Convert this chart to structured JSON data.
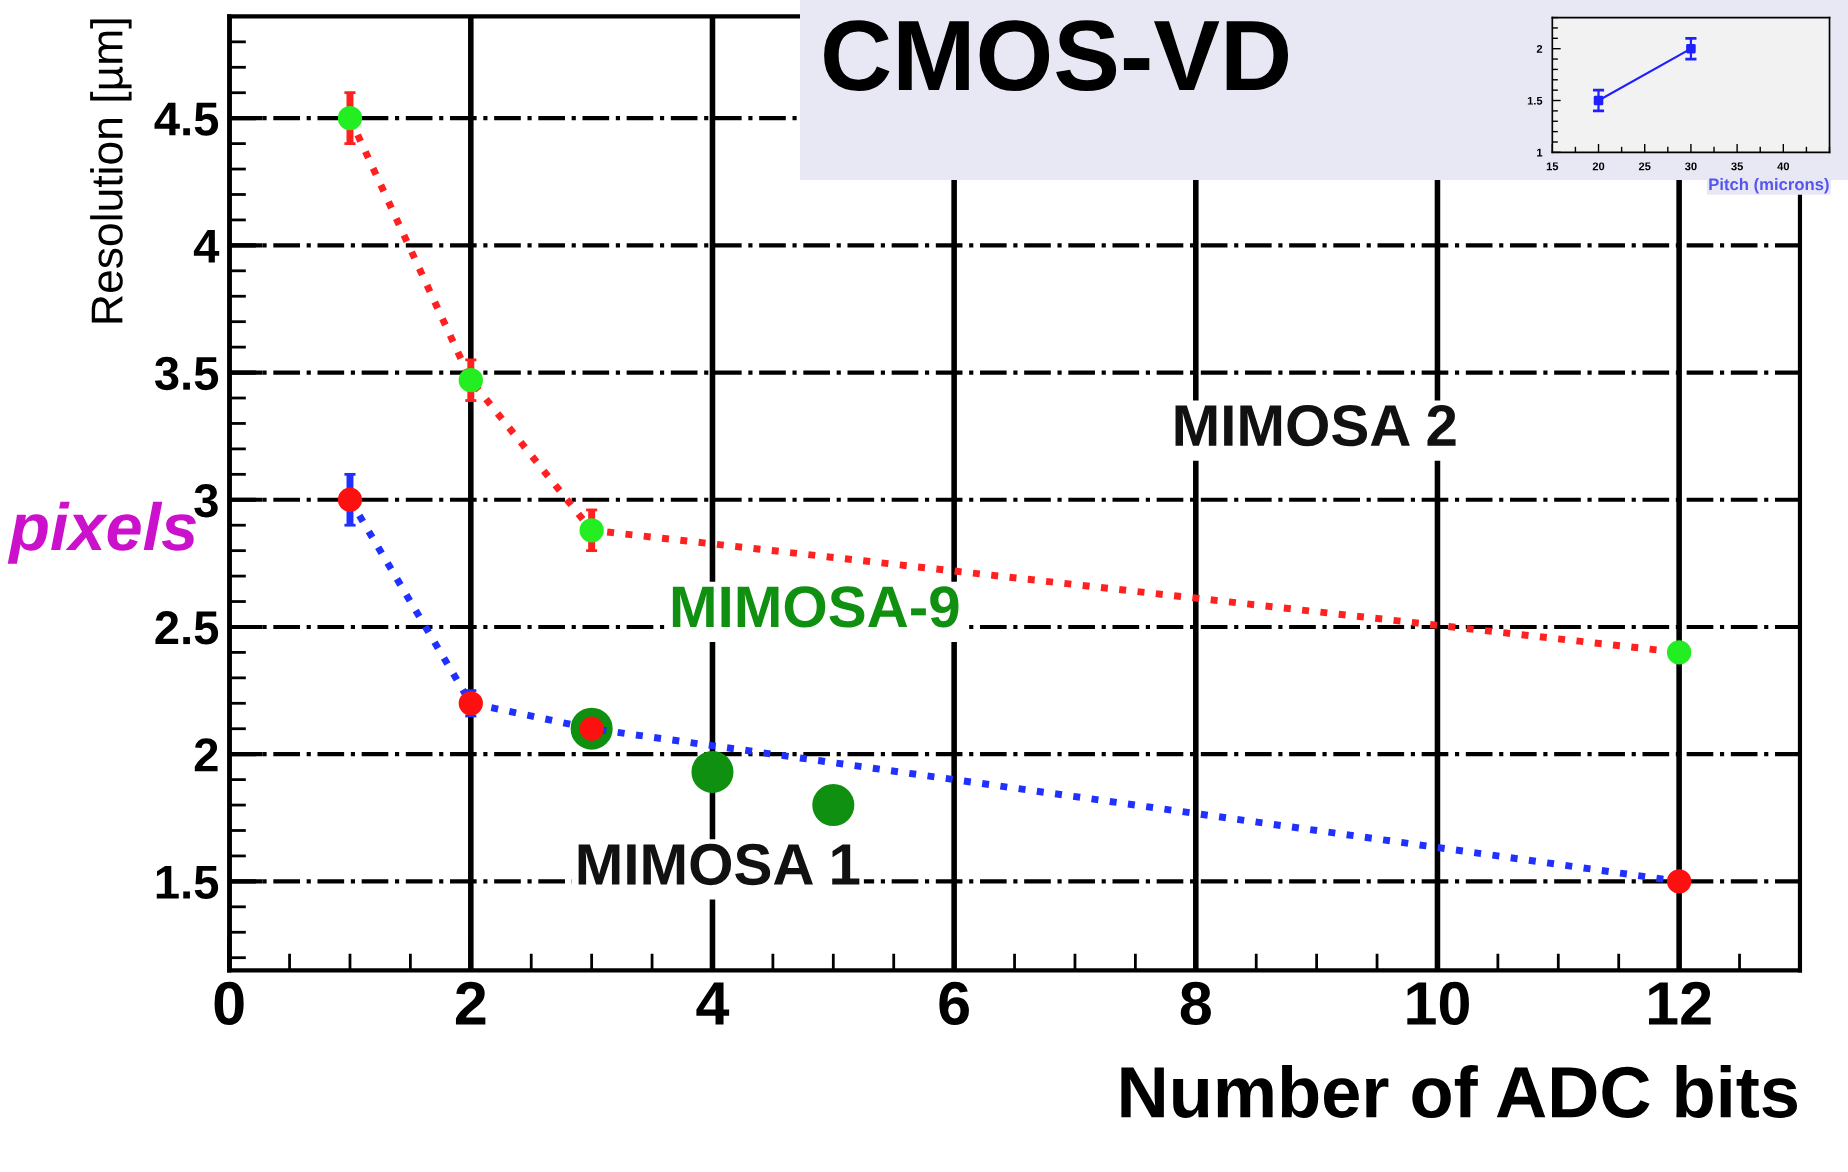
{
  "chart_data": [
    {
      "type": "line",
      "xlabel": "Number of ADC bits",
      "ylabel": "Resolution [µm]",
      "xlim": [
        0,
        13
      ],
      "ylim": [
        1.15,
        4.9
      ],
      "xticks": [
        0,
        2,
        4,
        6,
        8,
        10,
        12
      ],
      "yticks": [
        1.5,
        2,
        2.5,
        3,
        3.5,
        4,
        4.5
      ],
      "grid": true,
      "legend": false,
      "line_style": "dotted",
      "marker": "circle",
      "annotations": [
        "pixels",
        "CMOS-VD",
        "MIMOSA 2",
        "MIMOSA 1"
      ],
      "series": [
        {
          "color": "#ff2020",
          "colors": [
            "#22ee22",
            "#22ee22",
            "#22ee22",
            "#22ee22"
          ],
          "x": [
            1,
            2,
            3,
            12
          ],
          "values": [
            4.5,
            3.47,
            2.88,
            2.4
          ],
          "errors": [
            0.1,
            0.08,
            0.08,
            null
          ]
        },
        {
          "color": "#2030ff",
          "colors": [
            "#ff1010",
            "#ff1010",
            "#ff1010",
            "#ff1010"
          ],
          "x": [
            1,
            2,
            3,
            12
          ],
          "values": [
            3.0,
            2.2,
            2.1,
            1.5
          ],
          "errors": [
            0.1,
            0.05,
            null,
            null
          ]
        },
        {
          "name": "MIMOSA-9",
          "type": "scatter",
          "color": "#109010",
          "x": [
            3,
            4,
            5
          ],
          "values": [
            2.1,
            1.93,
            1.8
          ]
        }
      ]
    },
    {
      "type": "line",
      "xlabel": "Pitch (microns)",
      "xlim": [
        15,
        45
      ],
      "ylim": [
        1,
        2.3
      ],
      "xticks": [
        15,
        20,
        25,
        30,
        35,
        40
      ],
      "yticks": [
        1,
        1.5,
        2
      ],
      "grid": false,
      "legend": false,
      "line_style": "solid",
      "marker": "square",
      "series": [
        {
          "color": "#2020ff",
          "x": [
            20,
            30
          ],
          "values": [
            1.5,
            2.0
          ],
          "errors": [
            0.1,
            0.1
          ]
        }
      ]
    }
  ]
}
